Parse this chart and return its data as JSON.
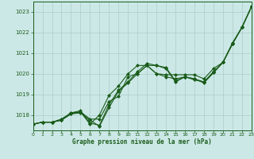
{
  "title": "Graphe pression niveau de la mer (hPa)",
  "bg_color": "#cce8e6",
  "grid_color": "#aaccca",
  "line_color": "#1a5c1a",
  "xlim": [
    0,
    23
  ],
  "ylim": [
    1017.25,
    1023.5
  ],
  "yticks": [
    1018,
    1019,
    1020,
    1021,
    1022,
    1023
  ],
  "xticks": [
    0,
    1,
    2,
    3,
    4,
    5,
    6,
    7,
    8,
    9,
    10,
    11,
    12,
    13,
    14,
    15,
    16,
    17,
    18,
    19,
    20,
    21,
    22,
    23
  ],
  "series_upper": [
    1017.55,
    1017.65,
    1017.65,
    1017.75,
    1018.05,
    1018.1,
    1017.75,
    1017.45,
    1018.35,
    1019.15,
    1019.55,
    1020.0,
    1020.4,
    1020.4,
    1020.25,
    1019.6,
    1019.85,
    1019.75,
    1019.55,
    1020.05,
    1020.55,
    1021.45,
    1022.25,
    1023.25
  ],
  "series_mid1": [
    1017.55,
    1017.65,
    1017.65,
    1017.75,
    1018.1,
    1018.15,
    1017.8,
    1017.8,
    1018.65,
    1018.9,
    1019.85,
    1020.0,
    1020.4,
    1020.0,
    1019.85,
    1019.75,
    1019.85,
    1019.75,
    1019.6,
    1020.05,
    1020.55,
    1021.45,
    1022.25,
    1023.25
  ],
  "series_mid2": [
    1017.55,
    1017.65,
    1017.65,
    1017.75,
    1018.05,
    1018.15,
    1017.55,
    1018.0,
    1018.95,
    1019.4,
    1020.0,
    1020.4,
    1020.4,
    1020.0,
    1019.95,
    1019.95,
    1019.95,
    1019.95,
    1019.75,
    1020.25,
    1020.55,
    1021.45,
    1022.25,
    1023.25
  ],
  "series_big": [
    1017.55,
    1017.65,
    1017.65,
    1017.75,
    1018.05,
    1018.1,
    1017.75,
    1017.45,
    1018.35,
    1019.15,
    1019.55,
    1020.0,
    1020.4,
    1020.4,
    1020.25,
    1019.6,
    1019.85,
    1019.75,
    1019.55,
    1020.05,
    1020.55,
    1021.45,
    1022.25,
    1023.25
  ]
}
